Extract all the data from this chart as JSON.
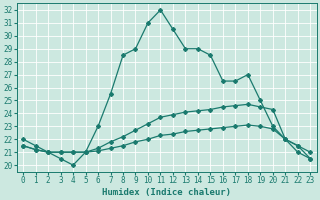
{
  "xlabel": "Humidex (Indice chaleur)",
  "xlim": [
    -0.5,
    23.5
  ],
  "ylim": [
    19.5,
    32.5
  ],
  "xticks": [
    0,
    1,
    2,
    3,
    4,
    5,
    6,
    7,
    8,
    9,
    10,
    11,
    12,
    13,
    14,
    15,
    16,
    17,
    18,
    19,
    20,
    21,
    22,
    23
  ],
  "yticks": [
    20,
    21,
    22,
    23,
    24,
    25,
    26,
    27,
    28,
    29,
    30,
    31,
    32
  ],
  "background_color": "#cce8e0",
  "grid_color": "#ffffff",
  "line_color": "#1a7a6e",
  "line1_x": [
    0,
    1,
    2,
    3,
    4,
    5,
    6,
    7,
    8,
    9,
    10,
    11,
    12,
    13,
    14,
    15,
    16,
    17,
    18,
    19,
    20,
    21,
    22,
    23
  ],
  "line1_y": [
    22,
    21.5,
    21,
    20.5,
    20,
    21,
    23,
    25.5,
    28.5,
    29,
    31,
    32,
    30.5,
    29,
    29,
    28.5,
    26.5,
    26.5,
    27,
    25,
    23,
    22,
    21,
    20.5
  ],
  "line2_x": [
    0,
    1,
    2,
    3,
    4,
    5,
    6,
    7,
    8,
    9,
    10,
    11,
    12,
    13,
    14,
    15,
    16,
    17,
    18,
    19,
    20,
    21,
    22,
    23
  ],
  "line2_y": [
    21.5,
    21.2,
    21,
    21,
    21,
    21,
    21.3,
    21.8,
    22.2,
    22.7,
    23.2,
    23.7,
    23.9,
    24.1,
    24.2,
    24.3,
    24.5,
    24.6,
    24.7,
    24.5,
    24.3,
    22,
    21.5,
    21
  ],
  "line3_x": [
    0,
    1,
    2,
    3,
    4,
    5,
    6,
    7,
    8,
    9,
    10,
    11,
    12,
    13,
    14,
    15,
    16,
    17,
    18,
    19,
    20,
    21,
    22,
    23
  ],
  "line3_y": [
    21.5,
    21.2,
    21,
    21,
    21,
    21,
    21.1,
    21.3,
    21.5,
    21.8,
    22,
    22.3,
    22.4,
    22.6,
    22.7,
    22.8,
    22.9,
    23,
    23.1,
    23,
    22.8,
    22,
    21.5,
    20.5
  ],
  "marker": "D",
  "markersize": 2,
  "linewidth": 0.9,
  "tick_fontsize": 5.5,
  "label_fontsize": 6.5
}
